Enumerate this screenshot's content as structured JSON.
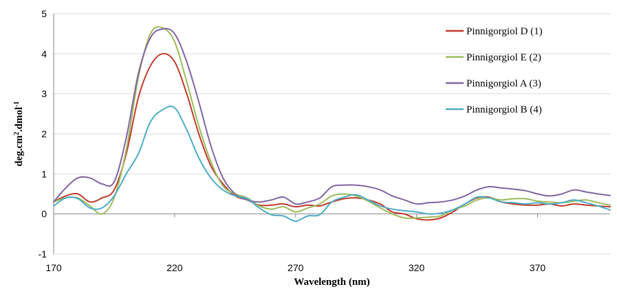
{
  "chart_data": {
    "type": "line",
    "title": "",
    "xlabel": "Wavelength (nm)",
    "ylabel_main": "deg.cm",
    "ylabel_sup1": "2",
    "ylabel_mid": ".dmol",
    "ylabel_sup2": "-1",
    "xlim": [
      170,
      400
    ],
    "ylim": [
      -1,
      5
    ],
    "xticks": [
      170,
      220,
      270,
      320,
      370
    ],
    "xtick_labels": [
      "170",
      "220",
      "270",
      "320",
      "370"
    ],
    "yticks": [
      -1,
      0,
      1,
      2,
      3,
      4,
      5
    ],
    "ytick_labels": [
      "-1",
      "0",
      "1",
      "2",
      "3",
      "4",
      "5"
    ],
    "grid": "horizontal",
    "legend_position": "right",
    "series": [
      {
        "name": "Pinnigorgiol D (1)",
        "color": "#c0392b",
        "x": [
          170,
          175,
          180,
          185,
          190,
          195,
          200,
          205,
          210,
          215,
          220,
          225,
          230,
          235,
          240,
          245,
          250,
          255,
          260,
          265,
          270,
          275,
          280,
          285,
          290,
          295,
          300,
          305,
          310,
          315,
          320,
          325,
          330,
          335,
          340,
          345,
          350,
          355,
          360,
          365,
          370,
          375,
          380,
          385,
          390,
          395,
          400
        ],
        "y": [
          0.3,
          0.45,
          0.5,
          0.3,
          0.4,
          0.6,
          1.5,
          2.9,
          3.7,
          4.0,
          3.8,
          3.0,
          2.0,
          1.2,
          0.75,
          0.45,
          0.35,
          0.22,
          0.22,
          0.25,
          0.18,
          0.22,
          0.2,
          0.3,
          0.38,
          0.4,
          0.35,
          0.25,
          0.05,
          0.0,
          -0.12,
          -0.15,
          -0.1,
          0.05,
          0.25,
          0.4,
          0.42,
          0.3,
          0.25,
          0.22,
          0.22,
          0.25,
          0.2,
          0.25,
          0.22,
          0.2,
          0.18
        ]
      },
      {
        "name": "Pinnigorgiol E (2)",
        "color": "#9bbb59",
        "x": [
          170,
          175,
          180,
          185,
          190,
          195,
          200,
          205,
          210,
          215,
          220,
          225,
          230,
          235,
          240,
          245,
          250,
          255,
          260,
          265,
          270,
          275,
          280,
          285,
          290,
          295,
          300,
          305,
          310,
          315,
          320,
          325,
          330,
          335,
          340,
          345,
          350,
          355,
          360,
          365,
          370,
          375,
          380,
          385,
          390,
          395,
          400
        ],
        "y": [
          0.3,
          0.4,
          0.4,
          0.2,
          0.0,
          0.4,
          1.6,
          3.4,
          4.5,
          4.65,
          4.3,
          3.3,
          2.2,
          1.3,
          0.7,
          0.5,
          0.4,
          0.2,
          0.12,
          0.18,
          0.05,
          0.15,
          0.25,
          0.45,
          0.5,
          0.45,
          0.32,
          0.15,
          0.0,
          -0.1,
          -0.1,
          -0.08,
          -0.05,
          0.1,
          0.2,
          0.35,
          0.4,
          0.35,
          0.38,
          0.38,
          0.32,
          0.3,
          0.28,
          0.32,
          0.35,
          0.28,
          0.22
        ]
      },
      {
        "name": "Pinnigorgiol A (3)",
        "color": "#8064a2",
        "x": [
          170,
          175,
          180,
          185,
          190,
          195,
          200,
          205,
          210,
          215,
          220,
          225,
          230,
          235,
          240,
          245,
          250,
          255,
          260,
          265,
          270,
          275,
          280,
          285,
          290,
          295,
          300,
          305,
          310,
          315,
          320,
          325,
          330,
          335,
          340,
          345,
          350,
          355,
          360,
          365,
          370,
          375,
          380,
          385,
          390,
          395,
          400
        ],
        "y": [
          0.3,
          0.65,
          0.9,
          0.9,
          0.75,
          0.8,
          1.9,
          3.5,
          4.4,
          4.62,
          4.5,
          3.8,
          2.8,
          1.7,
          0.9,
          0.5,
          0.35,
          0.3,
          0.35,
          0.42,
          0.25,
          0.3,
          0.4,
          0.68,
          0.72,
          0.72,
          0.68,
          0.6,
          0.45,
          0.35,
          0.25,
          0.28,
          0.3,
          0.35,
          0.45,
          0.6,
          0.68,
          0.65,
          0.62,
          0.58,
          0.5,
          0.45,
          0.5,
          0.6,
          0.55,
          0.5,
          0.46
        ]
      },
      {
        "name": "Pinnigorgiol B (4)",
        "color": "#4bacc6",
        "x": [
          170,
          175,
          180,
          185,
          190,
          195,
          200,
          205,
          210,
          215,
          220,
          225,
          230,
          235,
          240,
          245,
          250,
          255,
          260,
          265,
          270,
          275,
          280,
          285,
          290,
          295,
          300,
          305,
          310,
          315,
          320,
          325,
          330,
          335,
          340,
          345,
          350,
          355,
          360,
          365,
          370,
          375,
          380,
          385,
          390,
          395,
          400
        ],
        "y": [
          0.2,
          0.4,
          0.38,
          0.15,
          0.15,
          0.45,
          1.0,
          1.5,
          2.3,
          2.6,
          2.65,
          2.1,
          1.4,
          0.9,
          0.6,
          0.45,
          0.38,
          0.15,
          -0.02,
          -0.05,
          -0.18,
          -0.05,
          -0.02,
          0.3,
          0.42,
          0.48,
          0.35,
          0.2,
          0.12,
          0.08,
          0.05,
          0.0,
          0.02,
          0.1,
          0.25,
          0.42,
          0.4,
          0.3,
          0.28,
          0.25,
          0.28,
          0.25,
          0.28,
          0.35,
          0.28,
          0.2,
          0.1
        ]
      }
    ]
  }
}
